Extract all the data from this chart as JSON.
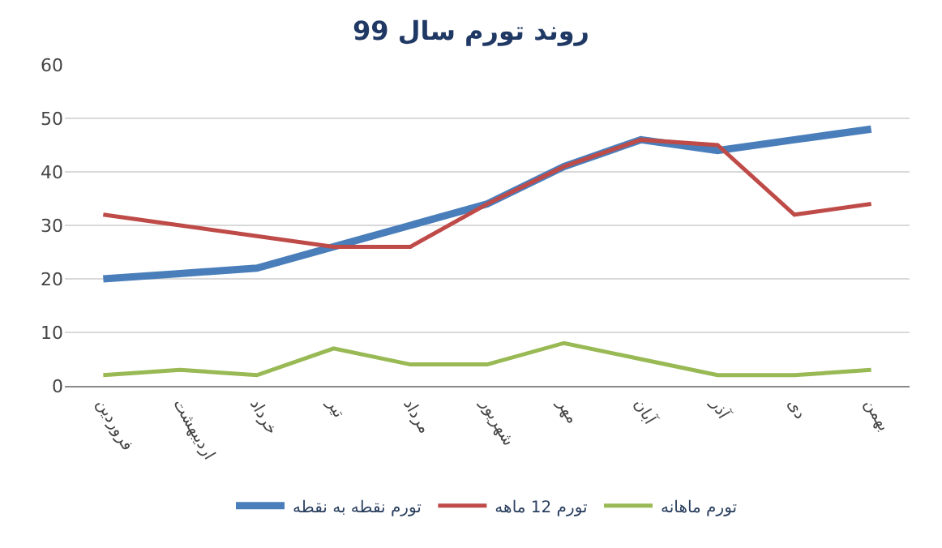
{
  "chart_data": {
    "type": "line",
    "title": "روند تورم سال 99",
    "categories": [
      "فروردین",
      "اردیبهشت",
      "خرداد",
      "تیر",
      "مرداد",
      "شهریور",
      "مهر",
      "آبان",
      "آذر",
      "دی",
      "بهمن"
    ],
    "series": [
      {
        "name": "تورم نقطه به نقطه",
        "color": "#4a7ebb",
        "values": [
          20,
          21,
          22,
          26,
          30,
          34,
          41,
          46,
          44,
          46,
          48
        ]
      },
      {
        "name": "تورم 12 ماهه",
        "color": "#be4b48",
        "values": [
          32,
          30,
          28,
          26,
          26,
          34,
          41,
          46,
          45,
          32,
          34
        ]
      },
      {
        "name": "تورم ماهانه",
        "color": "#98b954",
        "values": [
          2,
          3,
          2,
          7,
          4,
          4,
          8,
          5,
          2,
          2,
          3
        ]
      }
    ],
    "ylim": [
      0,
      60
    ],
    "yticks": [
      0,
      10,
      20,
      30,
      40,
      50,
      60
    ],
    "grid": "y",
    "legend": "bottom",
    "marker": "none",
    "line_style": "solid"
  }
}
